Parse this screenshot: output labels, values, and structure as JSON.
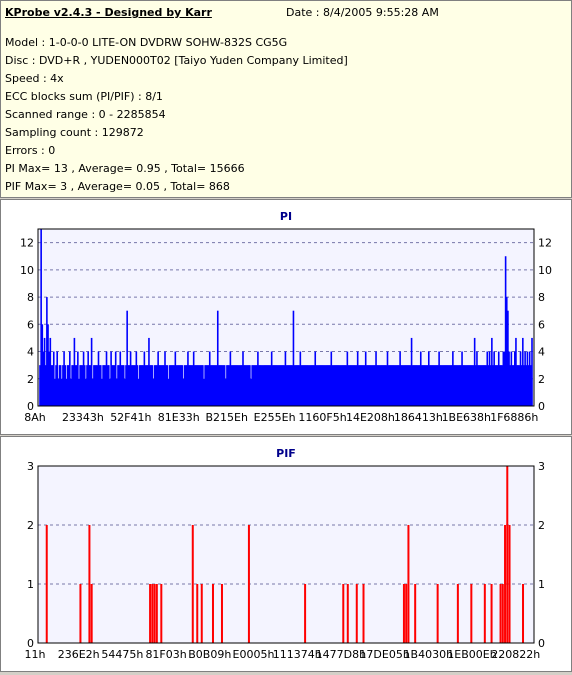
{
  "info": {
    "title": "KProbe v2.4.3 - Designed by Karr",
    "date": "Date : 8/4/2005 9:55:28 AM",
    "lines": [
      "Model : 1-0-0-0 LITE-ON DVDRW SOHW-832S  CG5G",
      "Disc : DVD+R , YUDEN000T02 [Taiyo Yuden Company Limited]",
      "Speed : 4x",
      "ECC blocks sum (PI/PIF) : 8/1",
      "Scanned range : 0 - 2285854",
      "Sampling count : 129872",
      "Errors : 0",
      "PI Max= 13 , Average= 0.95 , Total= 15666",
      "PIF Max= 3 , Average= 0.05 , Total= 868"
    ]
  },
  "colors": {
    "pi": "#0000ff",
    "pif": "#ff0000",
    "plot_bg": "#f4f4ff",
    "grid": "#7777aa",
    "title": "#00008b"
  },
  "chart_data": [
    {
      "type": "bar",
      "title": "PI",
      "ylim": [
        0,
        13
      ],
      "yticks": [
        0,
        2,
        4,
        6,
        8,
        10,
        12
      ],
      "xtick_labels": [
        "8Ah",
        "23343h",
        "52F41h",
        "81E33h",
        "B215Eh",
        "E255Eh",
        "1160F5h",
        "14E208h",
        "186413h",
        "1BE638h",
        "1F6886h"
      ],
      "grid": true,
      "values": [
        3,
        13,
        6,
        4,
        5,
        3,
        8,
        6,
        4,
        5,
        3,
        3,
        4,
        2,
        3,
        4,
        2,
        3,
        3,
        2,
        3,
        4,
        3,
        2,
        3,
        3,
        4,
        2,
        3,
        3,
        5,
        3,
        3,
        4,
        2,
        3,
        3,
        3,
        4,
        3,
        2,
        3,
        4,
        3,
        3,
        5,
        2,
        3,
        3,
        3,
        3,
        4,
        3,
        3,
        2,
        3,
        3,
        3,
        4,
        3,
        3,
        2,
        4,
        3,
        3,
        3,
        4,
        2,
        3,
        3,
        4,
        3,
        3,
        3,
        2,
        3,
        7,
        3,
        3,
        4,
        3,
        3,
        3,
        3,
        4,
        3,
        2,
        3,
        3,
        3,
        3,
        4,
        3,
        3,
        3,
        5,
        3,
        3,
        3,
        2,
        3,
        3,
        3,
        4,
        3,
        3,
        3,
        3,
        3,
        4,
        3,
        3,
        2,
        3,
        3,
        3,
        3,
        3,
        4,
        3,
        3,
        3,
        3,
        3,
        3,
        2,
        3,
        3,
        3,
        4,
        3,
        3,
        3,
        3,
        4,
        3,
        3,
        3,
        3,
        3,
        3,
        3,
        3,
        2,
        3,
        3,
        3,
        3,
        4,
        3,
        3,
        3,
        3,
        3,
        3,
        7,
        3,
        3,
        3,
        3,
        3,
        3,
        2,
        3,
        3,
        3,
        4,
        3,
        3,
        3,
        3,
        3,
        3,
        3,
        3,
        3,
        3,
        4,
        3,
        3,
        3,
        3,
        3,
        3,
        2,
        3,
        3,
        3,
        3,
        3,
        4,
        3,
        3,
        3,
        3,
        3,
        3,
        3,
        3,
        3,
        3,
        3,
        4,
        3,
        3,
        3,
        3,
        3,
        3,
        3,
        3,
        3,
        3,
        3,
        4,
        3,
        3,
        3,
        3,
        3,
        3,
        7,
        3,
        3,
        3,
        3,
        3,
        4,
        3,
        3,
        3,
        3,
        3,
        3,
        3,
        3,
        3,
        3,
        3,
        3,
        4,
        3,
        3,
        3,
        3,
        3,
        3,
        3,
        3,
        3,
        3,
        3,
        3,
        3,
        4,
        3,
        3,
        3,
        3,
        3,
        3,
        3,
        3,
        3,
        3,
        3,
        3,
        3,
        4,
        3,
        3,
        3,
        3,
        3,
        3,
        3,
        3,
        4,
        3,
        3,
        3,
        3,
        3,
        3,
        4,
        3,
        3,
        3,
        3,
        3,
        3,
        3,
        3,
        4,
        3,
        3,
        3,
        3,
        3,
        3,
        3,
        3,
        3,
        4,
        3,
        3,
        3,
        3,
        3,
        3,
        3,
        3,
        3,
        3,
        4,
        3,
        3,
        3,
        3,
        3,
        3,
        3,
        3,
        3,
        5,
        3,
        3,
        3,
        3,
        3,
        3,
        3,
        4,
        3,
        3,
        3,
        3,
        3,
        3,
        4,
        3,
        3,
        3,
        3,
        3,
        3,
        3,
        3,
        4,
        3,
        3,
        3,
        3,
        3,
        3,
        3,
        3,
        3,
        3,
        3,
        4,
        3,
        3,
        3,
        3,
        3,
        3,
        3,
        4,
        3,
        3,
        3,
        3,
        3,
        3,
        3,
        3,
        3,
        3,
        5,
        3,
        4,
        3,
        3,
        3,
        3,
        3,
        3,
        3,
        3,
        4,
        3,
        4,
        3,
        5,
        3,
        4,
        3,
        3,
        3,
        4,
        3,
        3,
        3,
        4,
        4,
        11,
        8,
        7,
        4,
        3,
        4,
        3,
        3,
        4,
        5,
        3,
        3,
        3,
        4,
        3,
        5,
        3,
        4,
        3,
        4,
        3,
        4,
        3,
        5
      ]
    },
    {
      "type": "bar",
      "title": "PIF",
      "ylim": [
        0,
        3
      ],
      "yticks": [
        0,
        1,
        2,
        3
      ],
      "xtick_labels": [
        "11h",
        "236E2h",
        "54475h",
        "81F03h",
        "B0B09h",
        "E0005h",
        "111374h",
        "1477D8h",
        "17DE05h",
        "1B4030h",
        "1EB00Eh",
        "220822h"
      ],
      "grid": true,
      "values": [
        0,
        0,
        0,
        2,
        0,
        0,
        0,
        0,
        0,
        0,
        0,
        0,
        0,
        0,
        0,
        0,
        0,
        0,
        1,
        0,
        0,
        0,
        2,
        1,
        0,
        0,
        0,
        0,
        0,
        0,
        0,
        0,
        0,
        0,
        0,
        0,
        0,
        0,
        0,
        0,
        0,
        0,
        0,
        0,
        0,
        0,
        0,
        0,
        0,
        1,
        1,
        1,
        1,
        0,
        1,
        0,
        0,
        0,
        0,
        0,
        0,
        0,
        0,
        0,
        0,
        0,
        0,
        0,
        2,
        0,
        1,
        0,
        1,
        0,
        0,
        0,
        0,
        1,
        0,
        0,
        0,
        1,
        0,
        0,
        0,
        0,
        0,
        0,
        0,
        0,
        0,
        0,
        0,
        2,
        0,
        0,
        0,
        0,
        0,
        0,
        0,
        0,
        0,
        0,
        0,
        0,
        0,
        0,
        0,
        0,
        0,
        0,
        0,
        0,
        0,
        0,
        0,
        0,
        1,
        0,
        0,
        0,
        0,
        0,
        0,
        0,
        0,
        0,
        0,
        0,
        0,
        0,
        0,
        0,
        0,
        1,
        0,
        1,
        0,
        0,
        0,
        1,
        0,
        0,
        1,
        0,
        0,
        0,
        0,
        0,
        0,
        0,
        0,
        0,
        0,
        0,
        0,
        0,
        0,
        0,
        0,
        0,
        1,
        1,
        2,
        0,
        0,
        1,
        0,
        0,
        0,
        0,
        0,
        0,
        0,
        0,
        0,
        1,
        0,
        0,
        0,
        0,
        0,
        0,
        0,
        0,
        1,
        0,
        0,
        0,
        0,
        0,
        1,
        0,
        0,
        0,
        0,
        0,
        1,
        0,
        0,
        1,
        0,
        0,
        0,
        1,
        1,
        2,
        3,
        2,
        0,
        0,
        0,
        0,
        0,
        1,
        0,
        0,
        0,
        0
      ]
    }
  ]
}
